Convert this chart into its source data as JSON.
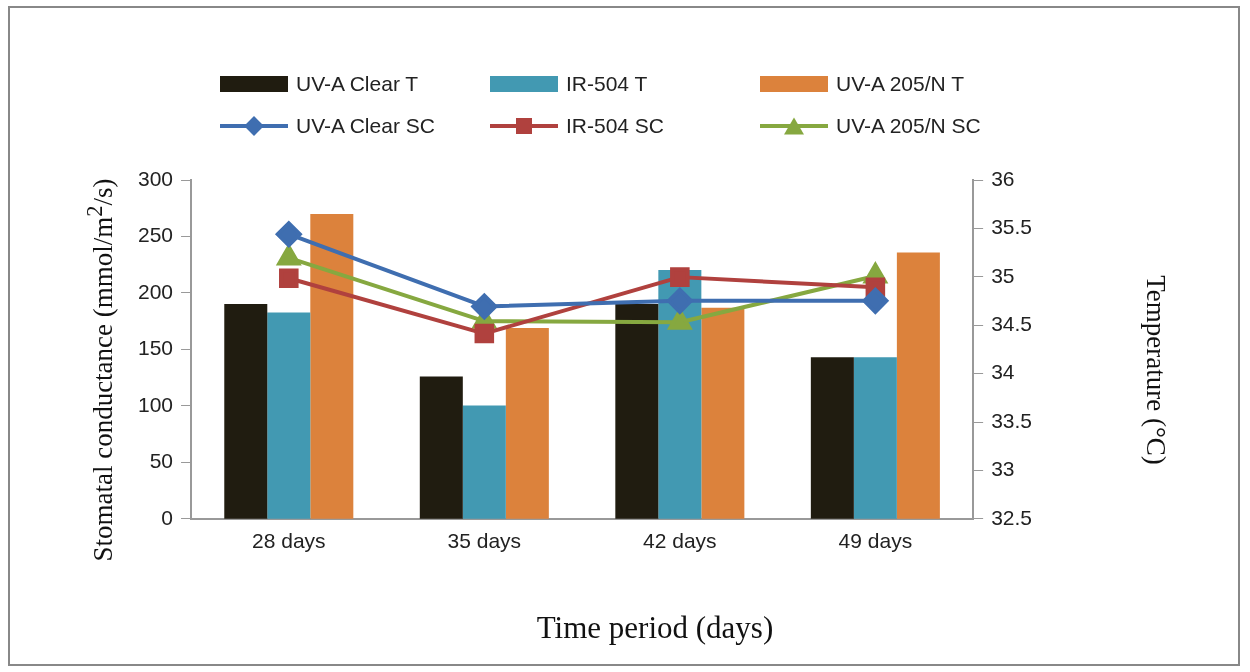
{
  "chart_data": {
    "type": "bar",
    "xlabel": "Time period (days)",
    "ylabel": "Stomatal conductance (mmol/m$^{2}$/s)",
    "y2label": "Temperature (°C)",
    "categories": [
      "28 days",
      "35 days",
      "42 days",
      "49 days"
    ],
    "series": [
      {
        "name": "UV-A Clear T",
        "axis": "y2",
        "color": "#201c10",
        "values": [
          34.72,
          33.97,
          34.72,
          34.17
        ]
      },
      {
        "name": "IR-504 T",
        "axis": "y2",
        "color": "#4299b2",
        "values": [
          34.63,
          33.67,
          35.07,
          34.17
        ]
      },
      {
        "name": "UV-A 205/N T",
        "axis": "y2",
        "color": "#dc823c",
        "values": [
          35.65,
          34.47,
          34.68,
          35.25
        ]
      },
      {
        "name": "UV-A Clear SC",
        "type": "line",
        "marker": "diamond",
        "color": "#3f6eb0",
        "values": [
          252,
          188,
          193,
          193
        ]
      },
      {
        "name": "IR-504 SC",
        "type": "line",
        "marker": "square",
        "color": "#b0413e",
        "values": [
          213,
          164,
          214,
          205
        ]
      },
      {
        "name": "UV-A 205/N SC",
        "type": "line",
        "marker": "triangle",
        "color": "#86a840",
        "values": [
          231,
          175,
          174,
          215
        ]
      }
    ],
    "ylim": [
      0,
      300
    ],
    "yticks": [
      0,
      50,
      100,
      150,
      200,
      250,
      300
    ],
    "y2lim": [
      32.5,
      36
    ],
    "y2ticks": [
      32.5,
      33,
      33.5,
      34,
      34.5,
      35,
      35.5,
      36
    ],
    "grid": false,
    "legend": "top"
  }
}
